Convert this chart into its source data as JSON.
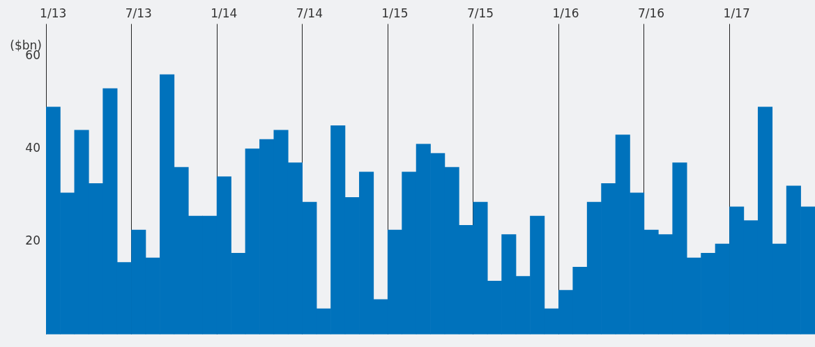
{
  "chart_data": {
    "type": "bar",
    "ylabel": "($bn)",
    "categories": [
      "1/13",
      null,
      null,
      null,
      null,
      null,
      "7/13",
      null,
      null,
      null,
      null,
      null,
      "1/14",
      null,
      null,
      null,
      null,
      null,
      "7/14",
      null,
      null,
      null,
      null,
      null,
      "1/15",
      null,
      null,
      null,
      null,
      null,
      "7/15",
      null,
      null,
      null,
      null,
      null,
      "1/16",
      null,
      null,
      null,
      null,
      null,
      "7/16",
      null,
      null,
      null,
      null,
      null,
      "1/17",
      null,
      null,
      null,
      null,
      null
    ],
    "values": [
      49,
      30.5,
      44,
      32.5,
      53,
      15.5,
      22.5,
      16.5,
      56,
      36,
      25.5,
      25.5,
      34,
      17.5,
      40,
      42,
      44,
      37,
      28.5,
      5.5,
      45,
      29.5,
      35,
      7.5,
      22.5,
      35,
      41,
      39,
      36,
      23.5,
      28.5,
      11.5,
      21.5,
      12.5,
      25.5,
      5.5,
      9.5,
      14.5,
      28.5,
      32.5,
      43,
      30.5,
      22.5,
      21.5,
      37,
      16.5,
      17.5,
      19.5,
      27.5,
      24.5,
      49,
      19.5,
      32,
      27.5
    ],
    "color": "#0072bc",
    "ylim": [
      0,
      63
    ],
    "yticks": [
      20,
      40,
      60
    ],
    "grid": "x"
  }
}
